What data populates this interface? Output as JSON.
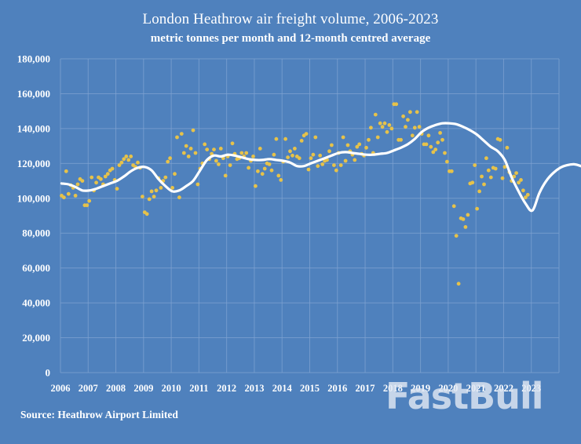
{
  "header": {
    "title": "London Heathrow air freight volume, 2006-2023",
    "subtitle": "metric tonnes per month and 12-month centred average"
  },
  "footer": {
    "source": "Source: Heathrow Airport Limited",
    "watermark": "FastBull"
  },
  "colors": {
    "background": "#4f81bd",
    "gridline": "#7fa3d2",
    "points": "#e6c24a",
    "average_line": "#ffffff",
    "text": "#ffffff"
  },
  "chart_data": {
    "type": "scatter",
    "title": "London Heathrow air freight volume, 2006-2023",
    "subtitle": "metric tonnes per month and 12-month centred average",
    "xlabel": "",
    "ylabel": "",
    "x_ticks": [
      "2006",
      "2007",
      "2008",
      "2009",
      "2010",
      "2011",
      "2012",
      "2013",
      "2014",
      "2015",
      "2016",
      "2017",
      "2018",
      "2019",
      "2020",
      "2021",
      "2022",
      "2023"
    ],
    "y_ticks": [
      "0",
      "20,000",
      "40,000",
      "60,000",
      "80,000",
      "100,000",
      "120,000",
      "140,000",
      "160,000",
      "180,000"
    ],
    "ylim": [
      0,
      180000
    ],
    "xlim": [
      2006,
      2024
    ],
    "grid": true,
    "legend": "none",
    "source": "Source: Heathrow Airport Limited",
    "series": [
      {
        "name": "Monthly freight (metric tonnes)",
        "type": "scatter",
        "start": "2006-01",
        "values": [
          101500,
          100500,
          115500,
          102500,
          107500,
          106000,
          101500,
          108000,
          111000,
          110000,
          96000,
          96000,
          98500,
          112000,
          104500,
          109000,
          112000,
          111000,
          108000,
          112500,
          114000,
          116000,
          117000,
          110500,
          105500,
          119000,
          120500,
          122500,
          124000,
          122000,
          124000,
          119000,
          118000,
          120500,
          117500,
          101000,
          92000,
          91000,
          99500,
          104000,
          101000,
          104500,
          111500,
          106000,
          110000,
          112000,
          121000,
          123000,
          106000,
          114000,
          135000,
          100500,
          137000,
          126000,
          130000,
          124000,
          128500,
          139000,
          126000,
          108000,
          117000,
          120000,
          131000,
          128000,
          122500,
          125500,
          128000,
          121500,
          119500,
          128500,
          123000,
          113000,
          124000,
          119000,
          131500,
          125500,
          122500,
          123000,
          126000,
          124000,
          126000,
          117500,
          121500,
          124000,
          107000,
          115500,
          128500,
          114000,
          117000,
          120000,
          119500,
          116000,
          125000,
          134000,
          113000,
          110500,
          121000,
          134000,
          123500,
          127000,
          124500,
          128500,
          124000,
          123000,
          133000,
          136000,
          137000,
          116500,
          123000,
          125000,
          135000,
          118500,
          124500,
          119500,
          121500,
          122000,
          127000,
          130500,
          119000,
          116000,
          126000,
          119000,
          135000,
          121500,
          130500,
          127000,
          125000,
          122000,
          129500,
          131000,
          125500,
          124500,
          129000,
          133500,
          140500,
          126000,
          148000,
          135000,
          143000,
          141000,
          143000,
          138000,
          142000,
          140000,
          154000,
          154000,
          133500,
          133500,
          147000,
          141000,
          145000,
          149500,
          136000,
          140500,
          149500,
          141000,
          137000,
          131000,
          131000,
          136000,
          129500,
          126500,
          128000,
          132000,
          137500,
          133500,
          126000,
          121000,
          115500,
          115500,
          95500,
          78500,
          51000,
          88500,
          88000,
          83500,
          90500,
          108500,
          109000,
          119000,
          94000,
          104000,
          112500,
          108000,
          123000,
          116000,
          112000,
          117500,
          117000,
          134000,
          133500,
          111500,
          118000,
          129000,
          115000,
          110000,
          112500,
          114500,
          109000,
          110500,
          104500,
          100500,
          102000
        ]
      },
      {
        "name": "12-month centred average",
        "type": "line",
        "x_start": 2006.0,
        "x_step": 0.25,
        "values": [
          108500,
          108000,
          106500,
          104500,
          104500,
          105500,
          107000,
          108500,
          110000,
          112500,
          115500,
          117500,
          118000,
          116000,
          111000,
          107000,
          104000,
          104500,
          107000,
          110000,
          116000,
          122000,
          124500,
          124000,
          125000,
          124500,
          123500,
          122500,
          122000,
          122000,
          122500,
          122000,
          121500,
          120500,
          118500,
          118500,
          120000,
          121500,
          123000,
          124500,
          126000,
          126500,
          126000,
          125500,
          125000,
          125000,
          125500,
          126000,
          127500,
          129000,
          131000,
          134000,
          138000,
          140500,
          142000,
          143000,
          143000,
          142500,
          141000,
          139000,
          136500,
          133000,
          129500,
          127000,
          122000,
          112000,
          104000,
          97000,
          93000,
          103000,
          110000,
          114500,
          117500,
          119000,
          119500,
          118500,
          116500,
          113000,
          110000
        ]
      }
    ]
  }
}
